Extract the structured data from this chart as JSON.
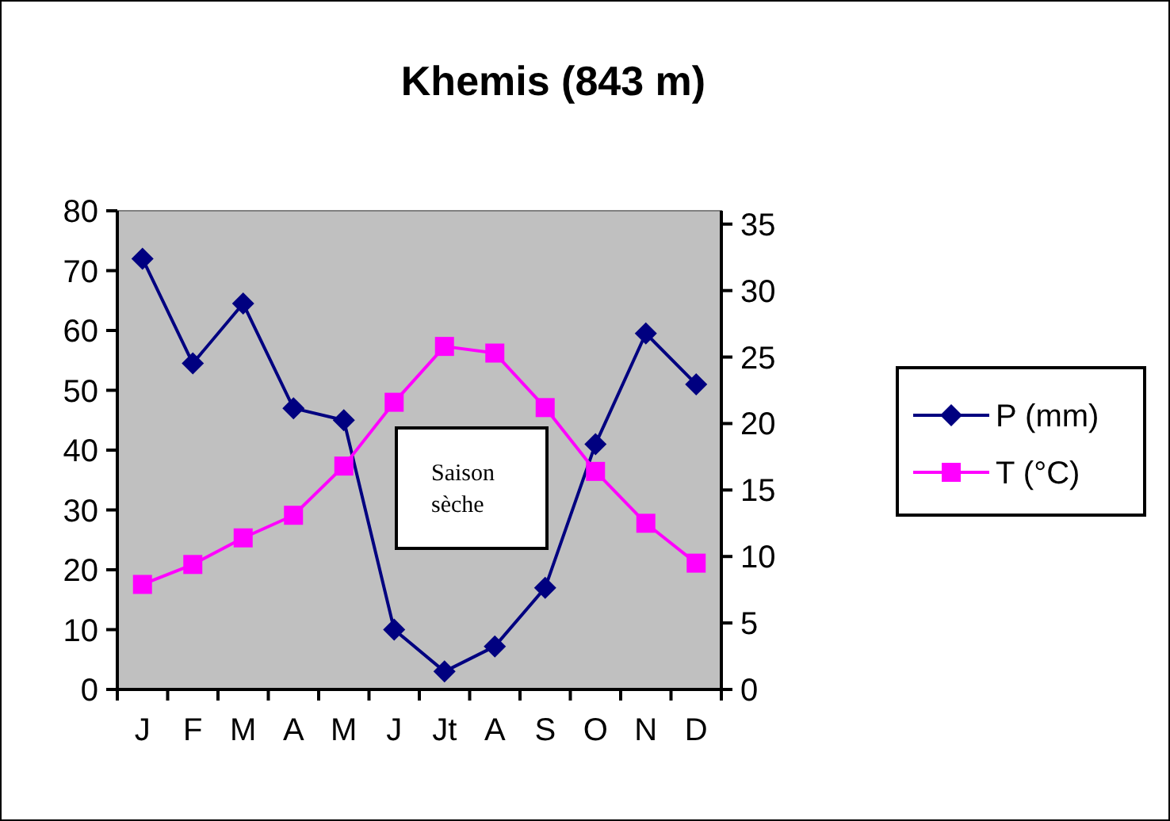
{
  "chart_data": {
    "type": "line",
    "title": "Khemis (843 m)",
    "categories": [
      "J",
      "F",
      "M",
      "A",
      "M",
      "J",
      "Jt",
      "A",
      "S",
      "O",
      "N",
      "D"
    ],
    "series": [
      {
        "name": "P (mm)",
        "color": "#000080",
        "marker": "diamond",
        "values": [
          72,
          54.5,
          64.5,
          47,
          45,
          10,
          3,
          7.2,
          17,
          41,
          59.5,
          51
        ]
      },
      {
        "name": "T (°C)",
        "color": "#ff00ff",
        "marker": "square",
        "axis": "y2",
        "values": [
          7.9,
          9.4,
          11.4,
          13.1,
          16.8,
          21.6,
          25.8,
          25.3,
          21.2,
          16.4,
          12.5,
          9.5
        ]
      }
    ],
    "ylim": [
      0,
      80
    ],
    "yticks": [
      0,
      10,
      20,
      30,
      40,
      50,
      60,
      70,
      80
    ],
    "y2lim": [
      0,
      36
    ],
    "y2ticks": [
      0,
      5,
      10,
      15,
      20,
      25,
      30,
      35
    ],
    "annotations": [
      "Saison sèche"
    ],
    "legend": "right",
    "grid": false
  }
}
